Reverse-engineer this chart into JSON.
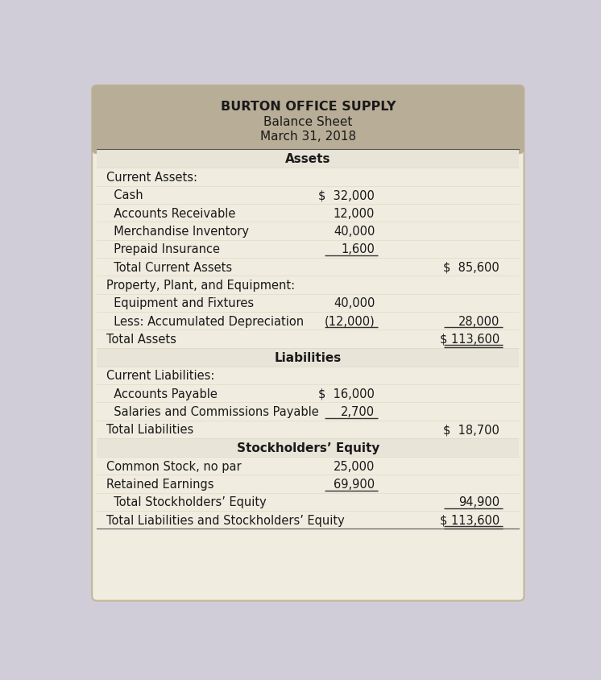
{
  "title_line1": "BURTON OFFICE SUPPLY",
  "title_line2": "Balance Sheet",
  "title_line3": "March 31, 2018",
  "header_bg": "#b8ad96",
  "section_bg": "#e8e4d8",
  "row_bg": "#f0ece0",
  "outer_bg": "#d0cdd8",
  "card_bg": "#f0ece0",
  "text_color": "#1a1a1a",
  "line_color": "#555555",
  "rows": [
    {
      "label": "Assets",
      "col1": "",
      "col2": "",
      "type": "section_header"
    },
    {
      "label": "Current Assets:",
      "col1": "",
      "col2": "",
      "type": "subsection"
    },
    {
      "label": "  Cash",
      "col1": "$  32,000",
      "col2": "",
      "type": "item",
      "ul1": false,
      "ul2": false
    },
    {
      "label": "  Accounts Receivable",
      "col1": "12,000",
      "col2": "",
      "type": "item",
      "ul1": false,
      "ul2": false
    },
    {
      "label": "  Merchandise Inventory",
      "col1": "40,000",
      "col2": "",
      "type": "item",
      "ul1": false,
      "ul2": false
    },
    {
      "label": "  Prepaid Insurance",
      "col1": "1,600",
      "col2": "",
      "type": "item",
      "ul1": true,
      "ul2": false
    },
    {
      "label": "  Total Current Assets",
      "col1": "",
      "col2": "$  85,600",
      "type": "item",
      "ul1": false,
      "ul2": false
    },
    {
      "label": "Property, Plant, and Equipment:",
      "col1": "",
      "col2": "",
      "type": "subsection"
    },
    {
      "label": "  Equipment and Fixtures",
      "col1": "40,000",
      "col2": "",
      "type": "item",
      "ul1": false,
      "ul2": false
    },
    {
      "label": "  Less: Accumulated Depreciation",
      "col1": "(12,000)",
      "col2": "28,000",
      "type": "item",
      "ul1": true,
      "ul2": true
    },
    {
      "label": "Total Assets",
      "col1": "",
      "col2": "$ 113,600",
      "type": "total",
      "ul1": false,
      "ul2": true,
      "double": true
    },
    {
      "label": "Liabilities",
      "col1": "",
      "col2": "",
      "type": "section_header"
    },
    {
      "label": "Current Liabilities:",
      "col1": "",
      "col2": "",
      "type": "subsection"
    },
    {
      "label": "  Accounts Payable",
      "col1": "$  16,000",
      "col2": "",
      "type": "item",
      "ul1": false,
      "ul2": false
    },
    {
      "label": "  Salaries and Commissions Payable",
      "col1": "2,700",
      "col2": "",
      "type": "item",
      "ul1": true,
      "ul2": false
    },
    {
      "label": "Total Liabilities",
      "col1": "",
      "col2": "$  18,700",
      "type": "item",
      "ul1": false,
      "ul2": false
    },
    {
      "label": "Stockholders’ Equity",
      "col1": "",
      "col2": "",
      "type": "section_header"
    },
    {
      "label": "Common Stock, no par",
      "col1": "25,000",
      "col2": "",
      "type": "item",
      "ul1": false,
      "ul2": false
    },
    {
      "label": "Retained Earnings",
      "col1": "69,900",
      "col2": "",
      "type": "item",
      "ul1": true,
      "ul2": false
    },
    {
      "label": "  Total Stockholders’ Equity",
      "col1": "",
      "col2": "94,900",
      "type": "item",
      "ul1": false,
      "ul2": true,
      "double": false
    },
    {
      "label": "Total Liabilities and Stockholders’ Equity",
      "col1": "",
      "col2": "$ 113,600",
      "type": "total",
      "ul1": false,
      "ul2": true,
      "double": true
    }
  ]
}
